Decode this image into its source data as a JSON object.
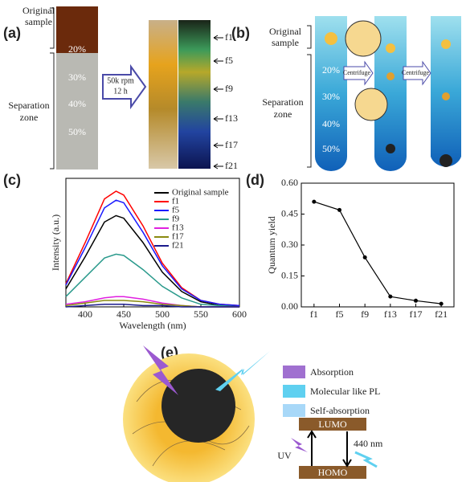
{
  "panel_labels": [
    "(a)",
    "(b)",
    "(c)",
    "(d)",
    "(e)"
  ],
  "panel_a": {
    "original_label": [
      "Original",
      "sample"
    ],
    "separation_label": [
      "Separation",
      "zone"
    ],
    "percentages": [
      "20%",
      "30%",
      "40%",
      "50%"
    ],
    "arrow_text": [
      "50k rpm",
      "12 h"
    ],
    "fractions": [
      "f1",
      "f5",
      "f9",
      "f13",
      "f17",
      "f21"
    ]
  },
  "panel_b": {
    "original_label": [
      "Original",
      "sample"
    ],
    "separation_label": [
      "Separation",
      "zone"
    ],
    "percentages": [
      "20%",
      "30%",
      "40%",
      "50%"
    ],
    "arrows": [
      "Centrifuge",
      "Centrifuge"
    ]
  },
  "chart_data": [
    {
      "type": "line",
      "xlabel": "Wavelength (nm)",
      "ylabel": "Intensity (a.u.)",
      "x": [
        375,
        400,
        425,
        440,
        450,
        475,
        500,
        525,
        550,
        575,
        600
      ],
      "xlim": [
        375,
        600
      ],
      "xticks": [
        400,
        450,
        500,
        550,
        600
      ],
      "ylim": [
        0,
        1
      ],
      "series": [
        {
          "name": "Original sample",
          "color": "#000000",
          "values": [
            0.14,
            0.39,
            0.66,
            0.71,
            0.69,
            0.5,
            0.27,
            0.12,
            0.04,
            0.01,
            0.01
          ]
        },
        {
          "name": "f1",
          "color": "#ff0000",
          "values": [
            0.18,
            0.5,
            0.84,
            0.9,
            0.87,
            0.63,
            0.34,
            0.15,
            0.05,
            0.02,
            0.01
          ]
        },
        {
          "name": "f5",
          "color": "#1a1aff",
          "values": [
            0.17,
            0.46,
            0.77,
            0.83,
            0.81,
            0.58,
            0.32,
            0.14,
            0.05,
            0.02,
            0.01
          ]
        },
        {
          "name": "f9",
          "color": "#2a9a8c",
          "values": [
            0.08,
            0.23,
            0.38,
            0.41,
            0.4,
            0.29,
            0.16,
            0.07,
            0.02,
            0.01,
            0
          ]
        },
        {
          "name": "f13",
          "color": "#e020e0",
          "values": [
            0.02,
            0.04,
            0.07,
            0.08,
            0.08,
            0.06,
            0.03,
            0.01,
            0,
            0,
            0
          ]
        },
        {
          "name": "f17",
          "color": "#8a8a10",
          "values": [
            0.01,
            0.03,
            0.05,
            0.05,
            0.05,
            0.04,
            0.02,
            0.01,
            0,
            0,
            0
          ]
        },
        {
          "name": "f21",
          "color": "#1a1a8c",
          "values": [
            0,
            0.01,
            0.02,
            0.02,
            0.02,
            0.01,
            0.01,
            0,
            0,
            0,
            0
          ]
        }
      ]
    },
    {
      "type": "line",
      "ylabel": "Quantum yield",
      "color": "#000000",
      "categories": [
        "f1",
        "f5",
        "f9",
        "f13",
        "f17",
        "f21"
      ],
      "values": [
        0.51,
        0.47,
        0.24,
        0.05,
        0.03,
        0.015
      ],
      "ylim": [
        0,
        0.6
      ],
      "yticks": [
        {
          "value": 0,
          "label": "0.00"
        },
        0.15,
        {
          "value": 0.3,
          "label": "0.30"
        },
        0.45,
        {
          "value": 0.6,
          "label": "0.60"
        }
      ]
    }
  ],
  "panel_e": {
    "legend": [
      "Absorption",
      "Molecular like PL",
      "Self-absorption"
    ],
    "levels": [
      "LUMO",
      "HOMO"
    ],
    "uv": "UV",
    "emission": "440 nm"
  }
}
